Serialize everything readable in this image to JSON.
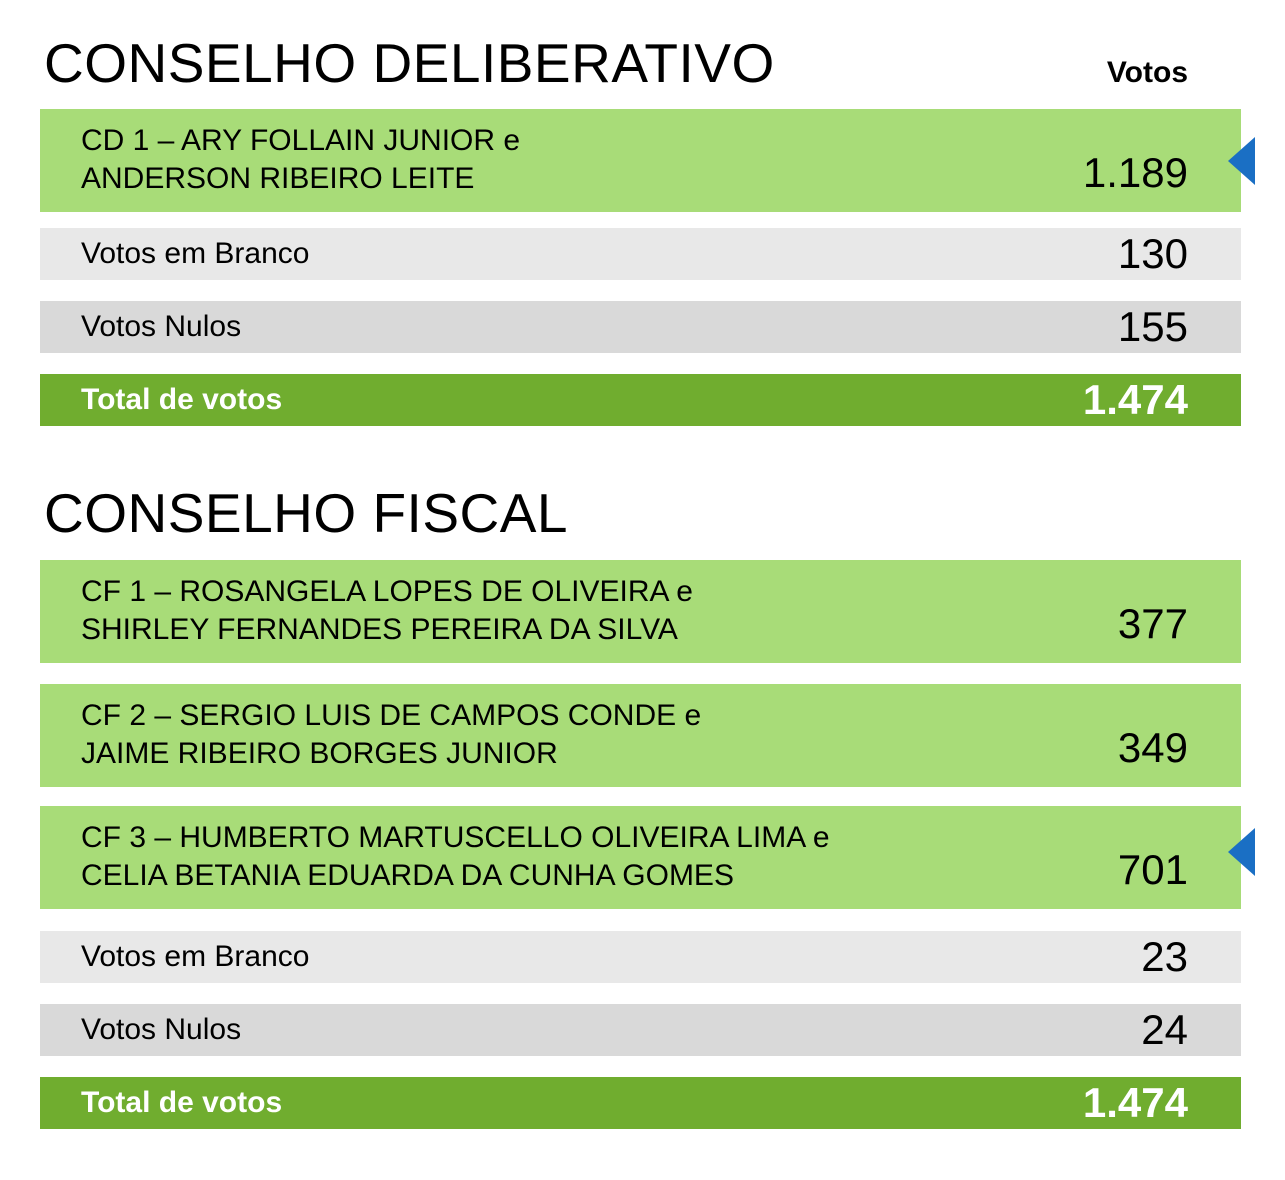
{
  "cd": {
    "title": "CONSELHO DELIBERATIVO",
    "votes_header": "Votos",
    "candidate": {
      "line1": "CD 1 – ARY FOLLAIN JUNIOR e",
      "line2": "ANDERSON RIBEIRO LEITE",
      "votes": "1.189"
    },
    "blank": {
      "label": "Votos em Branco",
      "votes": "130"
    },
    "null": {
      "label": "Votos Nulos",
      "votes": "155"
    },
    "total": {
      "label": "Total de votos",
      "votes": "1.474"
    }
  },
  "cf": {
    "title": "CONSELHO FISCAL",
    "candidates": [
      {
        "line1": "CF 1 – ROSANGELA LOPES DE OLIVEIRA e",
        "line2": "SHIRLEY FERNANDES PEREIRA DA SILVA",
        "votes": "377"
      },
      {
        "line1": "CF 2 – SERGIO LUIS DE CAMPOS CONDE e",
        "line2": "JAIME RIBEIRO BORGES JUNIOR",
        "votes": "349"
      },
      {
        "line1": "CF 3 – HUMBERTO MARTUSCELLO OLIVEIRA LIMA e",
        "line2": "CELIA BETANIA EDUARDA DA CUNHA GOMES",
        "votes": "701"
      }
    ],
    "blank": {
      "label": "Votos em Branco",
      "votes": "23"
    },
    "null": {
      "label": "Votos Nulos",
      "votes": "24"
    },
    "total": {
      "label": "Total de votos",
      "votes": "1.474"
    }
  },
  "colors": {
    "candidate_row": "#a8dc78",
    "blank_row": "#e8e8e8",
    "null_row": "#d9d9d9",
    "total_row": "#70ad2f",
    "winner_marker": "#1a6fc4"
  },
  "icons": {
    "winner_marker": "triangle-left-icon"
  }
}
